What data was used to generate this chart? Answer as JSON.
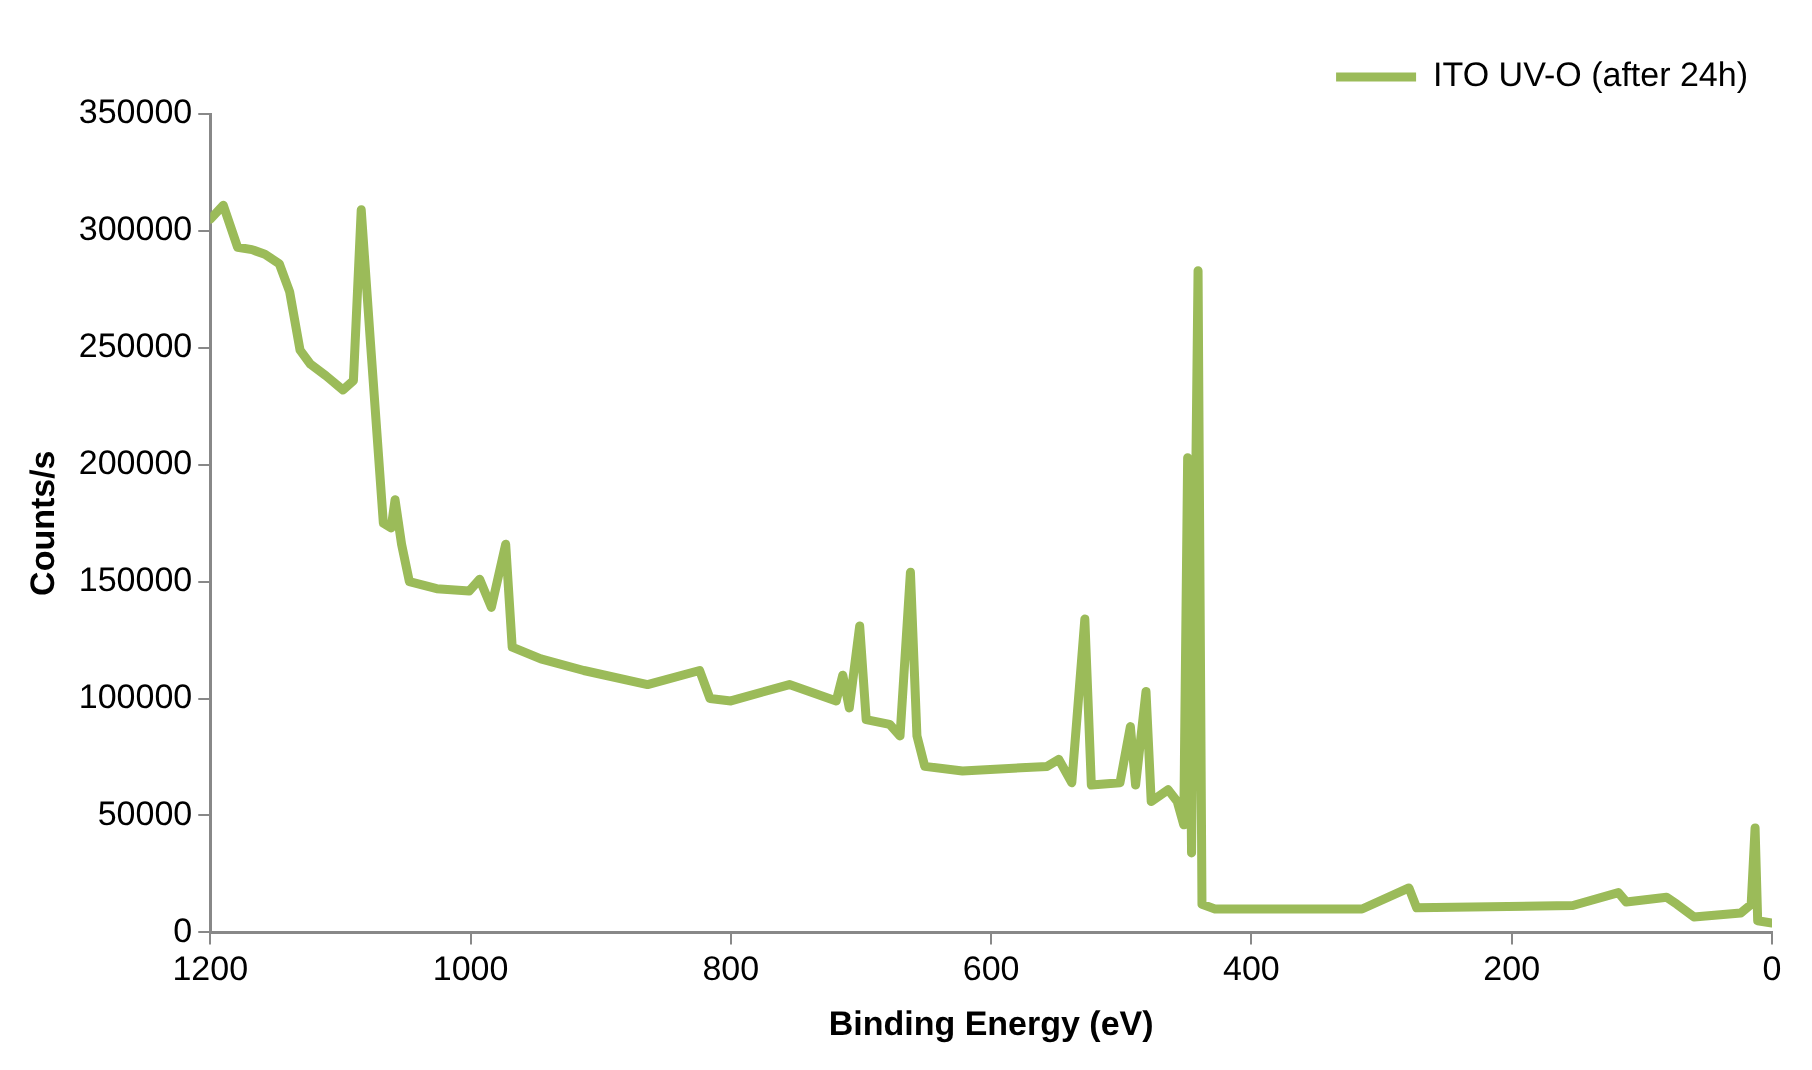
{
  "chart_data": {
    "type": "line",
    "xlabel": "Binding Energy (eV)",
    "ylabel": "Counts/s",
    "x": [
      1200,
      1190,
      1179,
      1168,
      1158,
      1147,
      1139,
      1131,
      1123,
      1111,
      1098,
      1090,
      1084,
      1077,
      1067,
      1061,
      1058,
      1053,
      1047,
      1026,
      1001,
      993,
      984,
      973,
      968,
      946,
      913,
      864,
      824,
      816,
      800,
      755,
      719,
      714,
      709,
      701,
      696,
      678,
      670,
      662,
      657,
      651,
      622,
      557,
      548,
      538,
      528,
      523,
      501,
      493,
      489,
      481,
      477,
      464,
      457,
      452,
      449,
      446,
      441,
      438,
      428,
      315,
      279,
      273,
      153,
      118,
      112,
      81,
      73,
      60,
      24,
      16,
      13,
      11,
      0
    ],
    "series": [
      {
        "name": "ITO UV-O (after 24h)",
        "color": "#9bbb59",
        "values": [
          305000,
          311000,
          293000,
          292000,
          290000,
          286000,
          274000,
          249000,
          243000,
          238000,
          232000,
          236000,
          309000,
          253000,
          175000,
          173000,
          185000,
          166000,
          150000,
          147000,
          146000,
          151000,
          139000,
          166000,
          122000,
          117000,
          112000,
          106000,
          112000,
          100000,
          99000,
          106000,
          99000,
          110000,
          96000,
          131000,
          91000,
          89000,
          84000,
          154000,
          84000,
          71000,
          69000,
          71000,
          74000,
          64000,
          134000,
          63000,
          64000,
          88000,
          63000,
          103000,
          56000,
          61000,
          56000,
          46000,
          203000,
          34000,
          283000,
          12000,
          10000,
          10000,
          19000,
          10500,
          11500,
          17000,
          13000,
          15000,
          12000,
          6600,
          8300,
          12000,
          44700,
          5000,
          4000
        ]
      }
    ],
    "xlim": [
      1200,
      0
    ],
    "xticks": [
      1200,
      1000,
      800,
      600,
      400,
      200,
      0
    ],
    "ylim": [
      0,
      350000
    ],
    "yticks": [
      0,
      50000,
      100000,
      150000,
      200000,
      250000,
      300000,
      350000
    ],
    "grid": false,
    "legend": "top right",
    "marker": "none",
    "line_style": "solid"
  }
}
